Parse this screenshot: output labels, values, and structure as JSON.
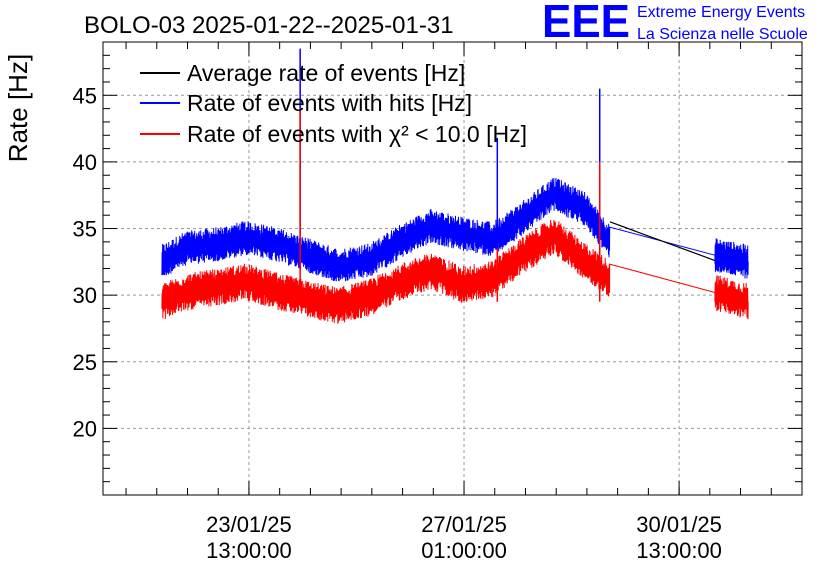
{
  "chart_data": {
    "type": "line",
    "title": "BOLO-03 2025-01-22--2025-01-31",
    "ylabel": "Rate [Hz]",
    "xlabel": "",
    "ylim": [
      15,
      49
    ],
    "yticks": [
      20,
      25,
      30,
      35,
      40,
      45
    ],
    "x_range": [
      "2025-01-21 04:00",
      "2025-02-01 13:00"
    ],
    "x_ticks": [
      {
        "x": "2025-01-23 13:00",
        "date": "23/01/25",
        "time": "13:00:00"
      },
      {
        "x": "2025-01-27 01:00",
        "date": "27/01/25",
        "time": "01:00:00"
      },
      {
        "x": "2025-01-30 13:00",
        "date": "30/01/25",
        "time": "13:00:00"
      }
    ],
    "grid": true,
    "legend_position": "top-left",
    "series": [
      {
        "name": "Average rate of events [Hz]",
        "color": "#000000",
        "x": [
          "2025-01-29 10:00",
          "2025-01-31 03:00"
        ],
        "y": [
          35.5,
          32.6
        ]
      },
      {
        "name": "Rate of events with hits [Hz]",
        "color": "#0000ff",
        "x": [
          "2025-01-22 03:00",
          "2025-01-22 12:00",
          "2025-01-23 00:00",
          "2025-01-23 12:00",
          "2025-01-24 00:00",
          "2025-01-24 12:00",
          "2025-01-25 00:00",
          "2025-01-25 12:00",
          "2025-01-26 00:00",
          "2025-01-26 12:00",
          "2025-01-27 00:00",
          "2025-01-27 12:00",
          "2025-01-28 00:00",
          "2025-01-28 12:00",
          "2025-01-29 00:00",
          "2025-01-29 10:00",
          "2025-01-31 03:00",
          "2025-01-31 16:00"
        ],
        "y": [
          32.5,
          33.5,
          33.8,
          34.3,
          33.8,
          33.0,
          32.2,
          32.6,
          34.0,
          35.2,
          34.6,
          34.2,
          35.8,
          37.6,
          36.5,
          34.0,
          33.0,
          32.5
        ],
        "spikes": [
          {
            "x": "2025-01-24 09:00",
            "y": 48.5
          },
          {
            "x": "2025-01-27 14:00",
            "y": 41.8
          },
          {
            "x": "2025-01-29 06:00",
            "y": 45.5
          }
        ]
      },
      {
        "name": "Rate of events with χ² < 10.0 [Hz]",
        "color": "#ff0000",
        "x": [
          "2025-01-22 03:00",
          "2025-01-22 12:00",
          "2025-01-23 00:00",
          "2025-01-23 12:00",
          "2025-01-24 00:00",
          "2025-01-24 12:00",
          "2025-01-25 00:00",
          "2025-01-25 12:00",
          "2025-01-26 00:00",
          "2025-01-26 12:00",
          "2025-01-27 00:00",
          "2025-01-27 12:00",
          "2025-01-28 00:00",
          "2025-01-28 12:00",
          "2025-01-29 00:00",
          "2025-01-29 10:00",
          "2025-01-31 03:00",
          "2025-01-31 16:00"
        ],
        "y": [
          29.5,
          30.2,
          30.6,
          31.0,
          30.3,
          29.7,
          29.2,
          29.8,
          31.0,
          31.8,
          30.8,
          31.2,
          33.0,
          34.5,
          32.6,
          31.2,
          30.2,
          29.5
        ],
        "spikes": [
          {
            "x": "2025-01-24 09:00",
            "y": 44.0
          },
          {
            "x": "2025-01-27 14:00",
            "y": 33.5
          },
          {
            "x": "2025-01-29 06:00",
            "y": 40.0
          }
        ]
      }
    ]
  },
  "logo": {
    "letters": "EEE",
    "line1": "Extreme Energy Events",
    "line2": "La Scienza nelle Scuole",
    "color": "#0000ff"
  }
}
